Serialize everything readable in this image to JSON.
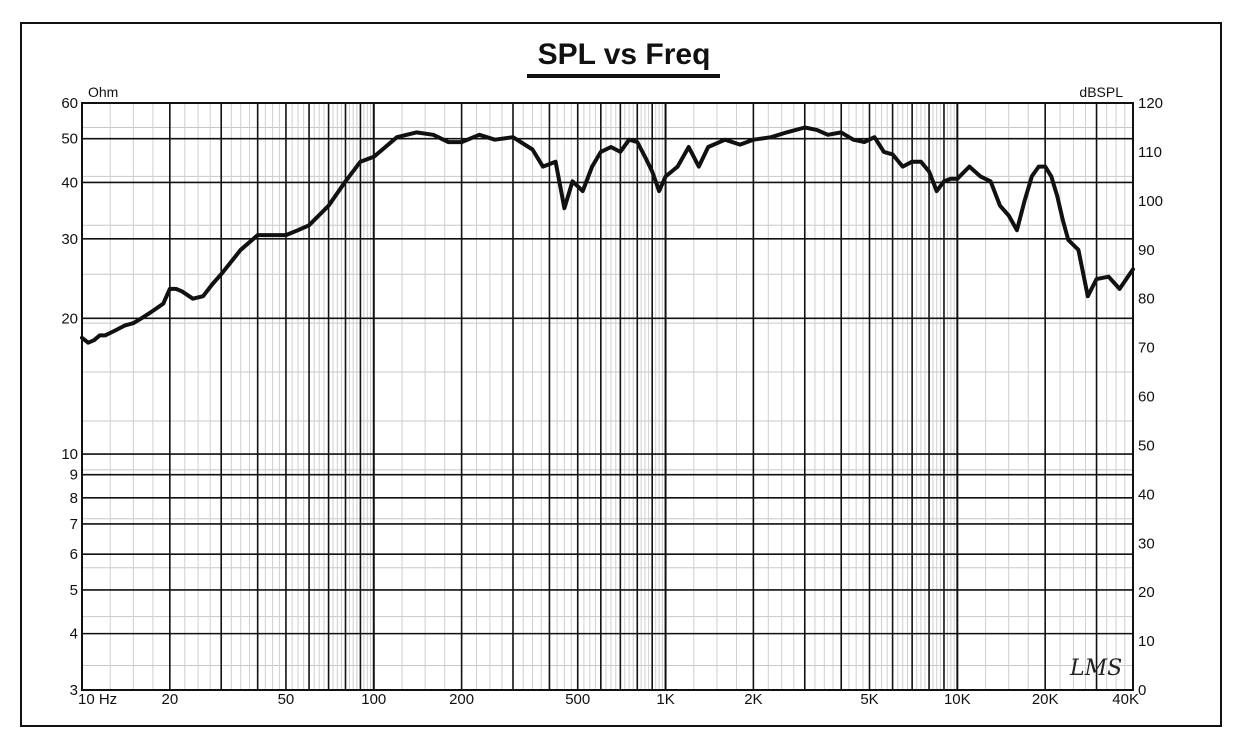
{
  "chart_data": {
    "type": "line",
    "title": "SPL vs Freq",
    "left_axis_unit": "Ohm",
    "right_axis_unit": "dBSPL",
    "x_scale": "log",
    "xlim": [
      10,
      40000
    ],
    "x_ticks": [
      {
        "value": 10,
        "label": "10 Hz"
      },
      {
        "value": 20,
        "label": "20"
      },
      {
        "value": 50,
        "label": "50"
      },
      {
        "value": 100,
        "label": "100"
      },
      {
        "value": 200,
        "label": "200"
      },
      {
        "value": 500,
        "label": "500"
      },
      {
        "value": 1000,
        "label": "1K"
      },
      {
        "value": 2000,
        "label": "2K"
      },
      {
        "value": 5000,
        "label": "5K"
      },
      {
        "value": 10000,
        "label": "10K"
      },
      {
        "value": 20000,
        "label": "20K"
      },
      {
        "value": 40000,
        "label": "40K"
      }
    ],
    "left_scale": "log",
    "left_ylim": [
      3,
      60
    ],
    "left_ticks": [
      3,
      4,
      5,
      6,
      7,
      8,
      9,
      10,
      20,
      30,
      40,
      50,
      60
    ],
    "right_ylim": [
      0,
      120
    ],
    "right_ticks": [
      0,
      10,
      20,
      30,
      40,
      50,
      60,
      70,
      80,
      90,
      100,
      110,
      120
    ],
    "grid": true,
    "logo_text": "LMS",
    "series": [
      {
        "axis": "right",
        "color": "#111111",
        "points": [
          [
            10,
            72
          ],
          [
            10.5,
            71
          ],
          [
            11,
            71.5
          ],
          [
            11.5,
            72.5
          ],
          [
            12,
            72.5
          ],
          [
            13,
            73.5
          ],
          [
            14,
            74.5
          ],
          [
            15,
            75
          ],
          [
            16,
            76
          ],
          [
            17,
            77
          ],
          [
            18,
            78
          ],
          [
            19,
            79
          ],
          [
            20,
            82
          ],
          [
            21,
            82
          ],
          [
            22,
            81.5
          ],
          [
            24,
            80
          ],
          [
            26,
            80.5
          ],
          [
            28,
            83
          ],
          [
            30,
            85
          ],
          [
            35,
            90
          ],
          [
            40,
            93
          ],
          [
            45,
            93
          ],
          [
            50,
            93
          ],
          [
            55,
            94
          ],
          [
            60,
            95
          ],
          [
            70,
            99
          ],
          [
            80,
            104
          ],
          [
            90,
            108
          ],
          [
            100,
            109
          ],
          [
            120,
            113
          ],
          [
            140,
            114
          ],
          [
            160,
            113.5
          ],
          [
            180,
            112
          ],
          [
            200,
            112
          ],
          [
            230,
            113.5
          ],
          [
            260,
            112.5
          ],
          [
            300,
            113
          ],
          [
            350,
            110.5
          ],
          [
            380,
            107
          ],
          [
            420,
            108
          ],
          [
            450,
            98.5
          ],
          [
            480,
            104
          ],
          [
            520,
            102
          ],
          [
            560,
            107
          ],
          [
            600,
            110
          ],
          [
            650,
            111
          ],
          [
            700,
            110
          ],
          [
            750,
            112.5
          ],
          [
            800,
            112
          ],
          [
            850,
            109
          ],
          [
            900,
            106
          ],
          [
            950,
            102
          ],
          [
            1000,
            105
          ],
          [
            1050,
            106
          ],
          [
            1100,
            107
          ],
          [
            1200,
            111
          ],
          [
            1300,
            107
          ],
          [
            1400,
            111
          ],
          [
            1600,
            112.5
          ],
          [
            1800,
            111.5
          ],
          [
            2000,
            112.5
          ],
          [
            2300,
            113
          ],
          [
            2600,
            114
          ],
          [
            3000,
            115
          ],
          [
            3300,
            114.5
          ],
          [
            3600,
            113.5
          ],
          [
            4000,
            114
          ],
          [
            4400,
            112.5
          ],
          [
            4800,
            112
          ],
          [
            5200,
            113
          ],
          [
            5600,
            110
          ],
          [
            6000,
            109.5
          ],
          [
            6500,
            107
          ],
          [
            7000,
            108
          ],
          [
            7500,
            108
          ],
          [
            8000,
            106
          ],
          [
            8500,
            102
          ],
          [
            9000,
            104
          ],
          [
            9500,
            104.5
          ],
          [
            10000,
            104.5
          ],
          [
            11000,
            107
          ],
          [
            12000,
            105
          ],
          [
            13000,
            104
          ],
          [
            14000,
            99
          ],
          [
            15000,
            97
          ],
          [
            16000,
            94
          ],
          [
            17000,
            100
          ],
          [
            18000,
            105
          ],
          [
            19000,
            107
          ],
          [
            20000,
            107
          ],
          [
            21000,
            105
          ],
          [
            22000,
            101
          ],
          [
            23000,
            96
          ],
          [
            24000,
            92
          ],
          [
            26000,
            90
          ],
          [
            28000,
            80.5
          ],
          [
            30000,
            84
          ],
          [
            33000,
            84.5
          ],
          [
            36000,
            82
          ],
          [
            40000,
            86
          ]
        ]
      }
    ]
  }
}
